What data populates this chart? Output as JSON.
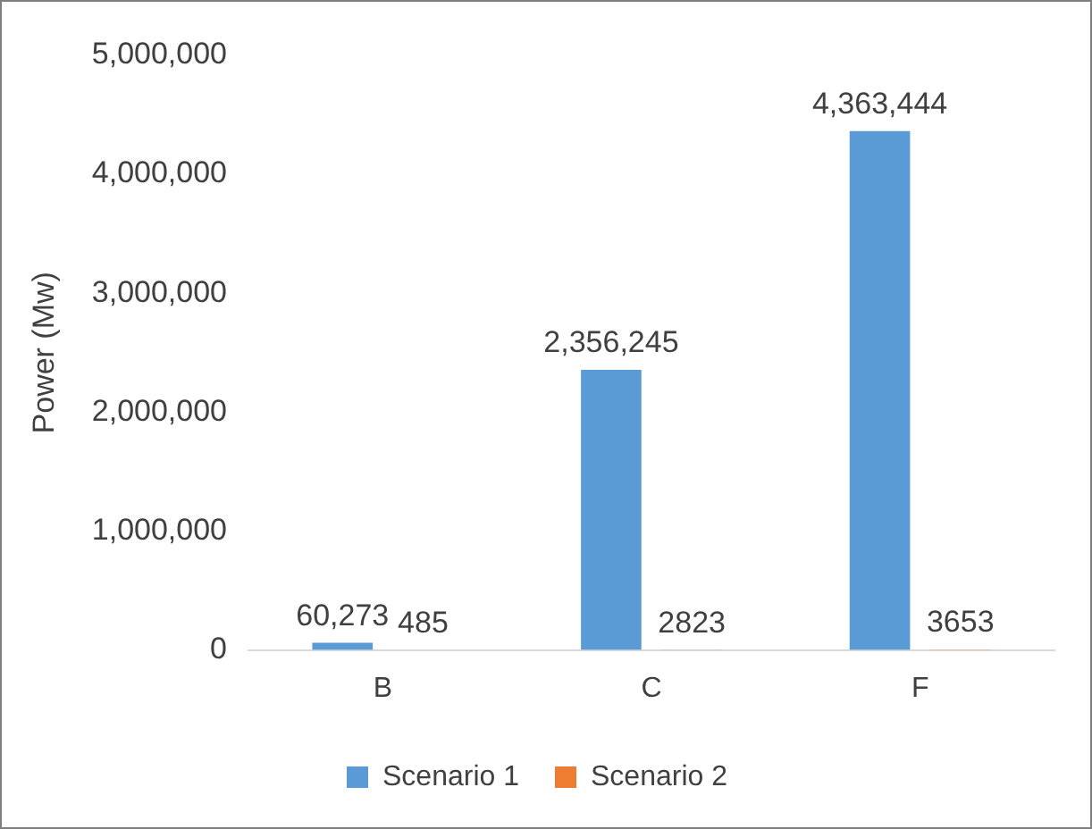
{
  "chart_data": {
    "type": "bar",
    "ylabel": "Power (Mw)",
    "categories": [
      "B",
      "C",
      "F"
    ],
    "series": [
      {
        "name": "Scenario 1",
        "color": "#5b9bd5",
        "values": [
          60273,
          2356245,
          4363444
        ],
        "value_labels": [
          "60,273",
          "2,356,245",
          "4,363,444"
        ]
      },
      {
        "name": "Scenario 2",
        "color": "#ed7d31",
        "values": [
          485,
          2823,
          3653
        ],
        "value_labels": [
          "485",
          "2823",
          "3653"
        ]
      }
    ],
    "ylim": [
      0,
      5000000
    ],
    "yticks": [
      {
        "value": 0,
        "label": "0"
      },
      {
        "value": 1000000,
        "label": "1,000,000"
      },
      {
        "value": 2000000,
        "label": "2,000,000"
      },
      {
        "value": 3000000,
        "label": "3,000,000"
      },
      {
        "value": 4000000,
        "label": "4,000,000"
      },
      {
        "value": 5000000,
        "label": "5,000,000"
      }
    ],
    "grid": false,
    "legend": "bottom"
  }
}
